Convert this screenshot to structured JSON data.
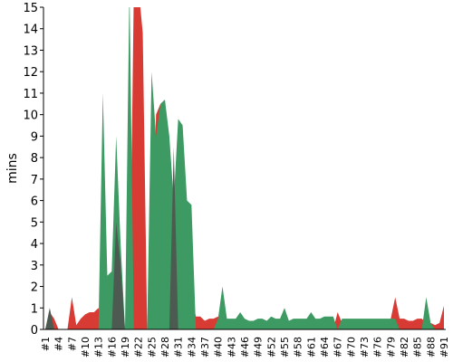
{
  "chart_data": {
    "type": "area",
    "y_label": "mins",
    "categories": [
      "#1",
      null,
      null,
      "#4",
      null,
      null,
      "#7",
      null,
      null,
      "#10",
      null,
      null,
      "#13",
      null,
      null,
      "#16",
      null,
      null,
      "#19",
      null,
      null,
      "#22",
      null,
      null,
      "#25",
      null,
      null,
      "#28",
      null,
      null,
      "#31",
      null,
      null,
      "#34",
      null,
      null,
      "#37",
      null,
      null,
      "#40",
      null,
      null,
      "#43",
      null,
      null,
      "#46",
      null,
      null,
      "#49",
      null,
      null,
      "#52",
      null,
      null,
      "#55",
      null,
      null,
      "#58",
      null,
      null,
      "#61",
      null,
      null,
      "#64",
      null,
      null,
      "#67",
      null,
      null,
      "#70",
      null,
      null,
      "#73",
      null,
      null,
      "#76",
      null,
      null,
      "#79",
      null,
      null,
      "#82",
      null,
      null,
      "#85",
      null,
      null,
      "#88",
      null,
      null,
      "#91"
    ],
    "series": [
      {
        "color": "#d83a34",
        "values": [
          0,
          0.8,
          0.5,
          0,
          0,
          0,
          1.5,
          0.2,
          0.5,
          0.7,
          0.8,
          0.8,
          1,
          0,
          0,
          0,
          0,
          0,
          0,
          0,
          16,
          16,
          13.8,
          0,
          0,
          10,
          10.5,
          0,
          0,
          0,
          0,
          0,
          5,
          1.5,
          0.6,
          0.6,
          0.4,
          0.5,
          0.5,
          0.6,
          0,
          0,
          0,
          0,
          0,
          0,
          0,
          0,
          0,
          0,
          0,
          0,
          0,
          0,
          0,
          0,
          0,
          0,
          0,
          0,
          0,
          0,
          0,
          0,
          0,
          0,
          0.8,
          0.3,
          0,
          0,
          0,
          0,
          0,
          0,
          0,
          0,
          0,
          0,
          0.5,
          1.5,
          0.5,
          0.5,
          0.4,
          0.4,
          0.5,
          0.5,
          0.3,
          0.3,
          0.2,
          0.3,
          1.1
        ]
      },
      {
        "color": "#3d9a62",
        "values": [
          0,
          0,
          0,
          0,
          0,
          0,
          0,
          0,
          0,
          0,
          0,
          0,
          0,
          11,
          2.5,
          2.7,
          9,
          4,
          0,
          16,
          0,
          0,
          0,
          0,
          12,
          9,
          10.5,
          10.7,
          9,
          6,
          9.8,
          9.5,
          6,
          5.8,
          0,
          0,
          0,
          0,
          0,
          0.5,
          2,
          0.5,
          0.5,
          0.5,
          0.8,
          0.5,
          0.4,
          0.4,
          0.5,
          0.5,
          0.4,
          0.6,
          0.5,
          0.5,
          1,
          0.4,
          0.5,
          0.5,
          0.5,
          0.5,
          0.8,
          0.5,
          0.5,
          0.6,
          0.6,
          0.6,
          0,
          0.5,
          0.5,
          0.5,
          0.5,
          0.5,
          0.5,
          0.5,
          0.5,
          0.5,
          0.5,
          0.5,
          0.5,
          0.5,
          0,
          0,
          0,
          0,
          0,
          0,
          1.5,
          0.3,
          0,
          0,
          0
        ]
      },
      {
        "color": "#4d5a52",
        "values": [
          0,
          1,
          0,
          0,
          0,
          0,
          0,
          0,
          0,
          0,
          0,
          0,
          0,
          0,
          0,
          0,
          5,
          3,
          0,
          0,
          0,
          0,
          0,
          0,
          0,
          0,
          0,
          0,
          0,
          8.5,
          0,
          0,
          0,
          0,
          0,
          0,
          0,
          0,
          0,
          0,
          0,
          0,
          0,
          0,
          0,
          0,
          0,
          0,
          0,
          0,
          0,
          0,
          0,
          0,
          0,
          0,
          0,
          0,
          0,
          0,
          0,
          0,
          0,
          0,
          0,
          0,
          0,
          0,
          0,
          0,
          0,
          0,
          0,
          0,
          0,
          0,
          0,
          0,
          0,
          0,
          0,
          0,
          0,
          0,
          0,
          0,
          0,
          0,
          0,
          0,
          0
        ]
      }
    ],
    "ylim": [
      0,
      15
    ],
    "yticks": [
      0,
      1,
      2,
      3,
      4,
      5,
      6,
      7,
      8,
      9,
      10,
      11,
      12,
      13,
      14,
      15
    ]
  }
}
